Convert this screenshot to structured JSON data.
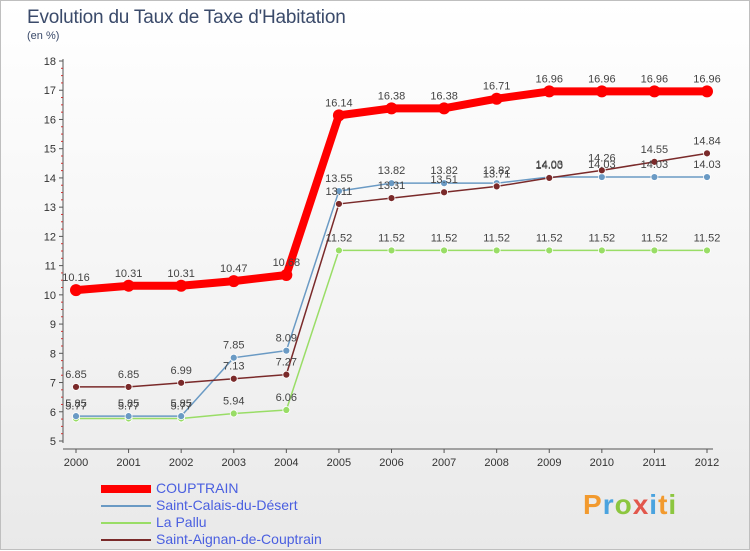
{
  "header": {
    "title": "Evolution du Taux de Taxe d'Habitation",
    "subtitle": "(en %)"
  },
  "brand": {
    "text": "Proxiti",
    "letters": [
      "P",
      "r",
      "o",
      "x",
      "i",
      "t",
      "i"
    ],
    "colors": [
      "#f29a2e",
      "#4aa3df",
      "#8cc63f",
      "#e2574c",
      "#4aa3df",
      "#f29a2e",
      "#8cc63f"
    ]
  },
  "chart_data": {
    "type": "line",
    "title": "Evolution du Taux de Taxe d'Habitation",
    "ylabel": "(en %)",
    "xlabel": "",
    "x": [
      "2000",
      "2001",
      "2002",
      "2003",
      "2004",
      "2005",
      "2006",
      "2007",
      "2008",
      "2009",
      "2010",
      "2011",
      "2012"
    ],
    "ylim": [
      5,
      18
    ],
    "yticks": [
      "5",
      "6",
      "7",
      "8",
      "9",
      "10",
      "11",
      "12",
      "13",
      "14",
      "15",
      "16",
      "17",
      "18"
    ],
    "grid": false,
    "legend_position": "bottom-left",
    "series": [
      {
        "name": "COUPTRAIN",
        "color": "#ff0000",
        "values": [
          10.16,
          10.31,
          10.31,
          10.47,
          10.68,
          16.14,
          16.38,
          16.38,
          16.71,
          16.96,
          16.96,
          16.96,
          16.96
        ],
        "labels": [
          "10.16",
          "10.31",
          "10.31",
          "10.47",
          "10.68",
          "16.14",
          "16.38",
          "16.38",
          "16.71",
          "16.96",
          "16.96",
          "16.96",
          "16.96"
        ]
      },
      {
        "name": "Saint-Calais-du-Désert",
        "color": "#6a9ac4",
        "values": [
          5.85,
          5.85,
          5.85,
          7.85,
          8.09,
          13.55,
          13.82,
          13.82,
          13.82,
          14.03,
          14.03,
          14.03,
          14.03
        ],
        "labels": [
          "5.85",
          "5.85",
          "5.85",
          "7.85",
          "8.09",
          "13.55",
          "13.82",
          "13.82",
          "13.82",
          "14.03",
          "14.03",
          "14.03",
          "14.03"
        ]
      },
      {
        "name": "La Pallu",
        "color": "#99dd66",
        "values": [
          5.77,
          5.77,
          5.77,
          5.94,
          6.06,
          11.52,
          11.52,
          11.52,
          11.52,
          11.52,
          11.52,
          11.52,
          11.52
        ],
        "labels": [
          "5.77",
          "5.77",
          "5.77",
          "5.94",
          "6.06",
          "11.52",
          "11.52",
          "11.52",
          "11.52",
          "11.52",
          "11.52",
          "11.52",
          "11.52"
        ]
      },
      {
        "name": "Saint-Aignan-de-Couptrain",
        "color": "#7a2a2a",
        "values": [
          6.85,
          6.85,
          6.99,
          7.13,
          7.27,
          13.11,
          13.31,
          13.51,
          13.71,
          14.0,
          14.26,
          14.55,
          14.84
        ],
        "labels": [
          "6.85",
          "6.85",
          "6.99",
          "7.13",
          "7.27",
          "13.11",
          "13.31",
          "13.51",
          "13.71",
          "14.00",
          "14.26",
          "14.55",
          "14.84"
        ]
      }
    ]
  }
}
